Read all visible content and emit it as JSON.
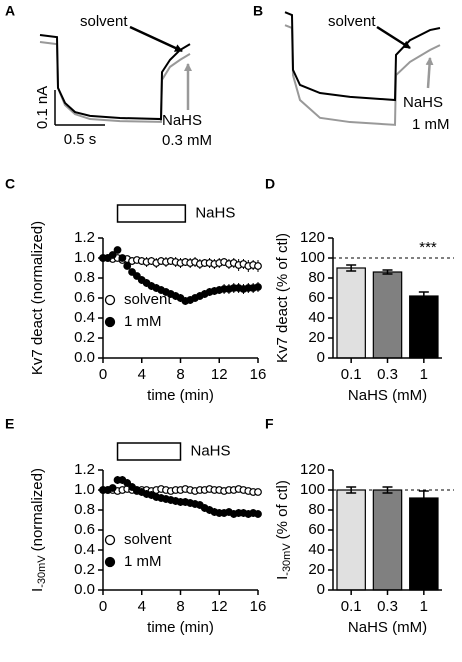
{
  "chart_data": [
    {
      "type": "trace",
      "panel": "A",
      "x": [
        0,
        0.17,
        0.18,
        0.25,
        0.35,
        0.5,
        0.8,
        1.21,
        1.22,
        1.3,
        1.4,
        1.5
      ],
      "xlim": [
        0,
        1.55
      ],
      "ylim": [
        0,
        0.357
      ],
      "series": [
        {
          "color": "#000000",
          "values": [
            0.257,
            0.251,
            0.106,
            0.063,
            0.037,
            0.026,
            0.02,
            0.017,
            0.151,
            0.186,
            0.214,
            0.231
          ]
        },
        {
          "color": "#999999",
          "values": [
            0.237,
            0.231,
            0.106,
            0.057,
            0.031,
            0.017,
            0.011,
            0.009,
            0.129,
            0.166,
            0.186,
            0.203
          ]
        }
      ],
      "annotations": [
        "solvent",
        "NaHS",
        "0.3 mM"
      ],
      "scale_bar": {
        "y": 0.1,
        "y_label": "0.1 nA",
        "x": 0.5,
        "x_label": "0.5 s"
      }
    },
    {
      "type": "trace",
      "panel": "B",
      "x": [
        0,
        0.07,
        0.08,
        0.15,
        0.35,
        0.65,
        1.1,
        1.11,
        1.25,
        1.45,
        1.55
      ],
      "xlim": [
        0,
        1.55
      ],
      "ylim": [
        0,
        0.386
      ],
      "series": [
        {
          "color": "#000000",
          "values": [
            0.351,
            0.343,
            0.186,
            0.143,
            0.12,
            0.109,
            0.1,
            0.229,
            0.271,
            0.3,
            0.306
          ]
        },
        {
          "color": "#999999",
          "values": [
            0.314,
            0.306,
            0.171,
            0.1,
            0.049,
            0.037,
            0.029,
            0.171,
            0.209,
            0.243,
            0.257
          ]
        }
      ],
      "annotations": [
        "solvent",
        "NaHS",
        "1 mM"
      ]
    },
    {
      "type": "scatter",
      "panel": "C",
      "x": [
        0,
        0.5,
        1,
        1.5,
        2,
        2.5,
        3,
        3.5,
        4,
        4.5,
        5,
        5.5,
        6,
        6.5,
        7,
        7.5,
        8,
        8.5,
        9,
        9.5,
        10,
        10.5,
        11,
        11.5,
        12,
        12.5,
        13,
        13.5,
        14,
        14.5,
        15,
        15.5,
        16
      ],
      "xlim": [
        0,
        16
      ],
      "xticks": [
        0,
        4,
        8,
        12,
        16
      ],
      "ylim": [
        0,
        1.2
      ],
      "yticks": [
        {
          "value": 0,
          "label": "0.0"
        },
        0.2,
        0.4,
        0.6,
        0.8,
        {
          "value": 1,
          "label": "1.0"
        },
        1.2
      ],
      "x_label": "time (min)",
      "y_label": "Kv7 deact (normalized)",
      "bar_label": "NaHS",
      "bar_start": 1.5,
      "bar_end": 8.5,
      "series": [
        {
          "name": "solvent",
          "marker": "open",
          "color": "#000000",
          "values": [
            1.0,
            1.0,
            0.99,
            1.0,
            0.98,
            0.99,
            0.97,
            0.98,
            0.97,
            0.96,
            0.97,
            0.95,
            0.97,
            0.96,
            0.97,
            0.96,
            0.95,
            0.96,
            0.95,
            0.96,
            0.94,
            0.95,
            0.95,
            0.94,
            0.95,
            0.96,
            0.94,
            0.95,
            0.93,
            0.94,
            0.92,
            0.93,
            0.92
          ],
          "errors": [
            0.02,
            0.02,
            0.02,
            0.03,
            0.03,
            0.03,
            0.04,
            0.03,
            0.04,
            0.05,
            0.04,
            0.05,
            0.04,
            0.05,
            0.04,
            0.05,
            0.05,
            0.04,
            0.05,
            0.05,
            0.05,
            0.04,
            0.05,
            0.05,
            0.05,
            0.04,
            0.05,
            0.05,
            0.06,
            0.05,
            0.06,
            0.05,
            0.06
          ]
        },
        {
          "name": "1 mM",
          "marker": "filled",
          "color": "#000000",
          "values": [
            1.0,
            1.0,
            1.03,
            1.08,
            1.0,
            0.92,
            0.86,
            0.82,
            0.78,
            0.75,
            0.72,
            0.7,
            0.68,
            0.66,
            0.64,
            0.62,
            0.6,
            0.57,
            0.58,
            0.6,
            0.62,
            0.64,
            0.66,
            0.67,
            0.68,
            0.69,
            0.69,
            0.7,
            0.7,
            0.69,
            0.7,
            0.7,
            0.71
          ],
          "errors": [
            0.02,
            0.02,
            0.02,
            0.03,
            0.03,
            0.03,
            0.03,
            0.03,
            0.04,
            0.04,
            0.04,
            0.04,
            0.04,
            0.04,
            0.04,
            0.04,
            0.04,
            0.04,
            0.04,
            0.04,
            0.04,
            0.04,
            0.04,
            0.04,
            0.04,
            0.05,
            0.05,
            0.05,
            0.05,
            0.05,
            0.05,
            0.05,
            0.05
          ]
        }
      ]
    },
    {
      "type": "bar",
      "panel": "D",
      "categories": [
        "0.1",
        "0.3",
        "1"
      ],
      "values": [
        90,
        86,
        62
      ],
      "errors": [
        3,
        2,
        4
      ],
      "colors": [
        "#e0e0e0",
        "#808080",
        "#000000"
      ],
      "ylim": [
        0,
        120
      ],
      "yticks": [
        0,
        20,
        40,
        60,
        80,
        100,
        120
      ],
      "ref_line": 100,
      "x_label": "NaHS (mM)",
      "y_label": "Kv7 deact (% of ctl)",
      "annotation": "***"
    },
    {
      "type": "scatter",
      "panel": "E",
      "x": [
        0,
        0.5,
        1,
        1.5,
        2,
        2.5,
        3,
        3.5,
        4,
        4.5,
        5,
        5.5,
        6,
        6.5,
        7,
        7.5,
        8,
        8.5,
        9,
        9.5,
        10,
        10.5,
        11,
        11.5,
        12,
        12.5,
        13,
        13.5,
        14,
        14.5,
        15,
        15.5,
        16
      ],
      "xlim": [
        0,
        16
      ],
      "xticks": [
        0,
        4,
        8,
        12,
        16
      ],
      "ylim": [
        0,
        1.2
      ],
      "yticks": [
        {
          "value": 0,
          "label": "0.0"
        },
        0.2,
        0.4,
        0.6,
        0.8,
        {
          "value": 1,
          "label": "1.0"
        },
        1.2
      ],
      "x_label": "time (min)",
      "y_label": "I",
      "y_label_sub": "-30mV",
      "y_label_end": "(normalized)",
      "bar_label": "NaHS",
      "bar_start": 1.5,
      "bar_end": 8,
      "series": [
        {
          "name": "solvent",
          "marker": "open",
          "color": "#000000",
          "values": [
            1.0,
            1.0,
            1.0,
            0.99,
            1.0,
            1.01,
            1.0,
            0.99,
            1.0,
            1.0,
            0.99,
            1.0,
            1.01,
            1.0,
            0.99,
            1.0,
            1.0,
            1.01,
            1.0,
            0.99,
            1.0,
            1.0,
            1.01,
            1.0,
            1.0,
            0.99,
            1.0,
            1.0,
            1.01,
            1.0,
            0.99,
            0.98,
            0.98
          ],
          "errors": [
            0.02,
            0.02,
            0.02,
            0.02,
            0.02,
            0.02,
            0.02,
            0.02,
            0.02,
            0.02,
            0.02,
            0.02,
            0.02,
            0.02,
            0.02,
            0.02,
            0.02,
            0.02,
            0.02,
            0.02,
            0.02,
            0.02,
            0.02,
            0.02,
            0.02,
            0.02,
            0.02,
            0.02,
            0.02,
            0.02,
            0.02,
            0.02,
            0.02
          ]
        },
        {
          "name": "1 mM",
          "marker": "filled",
          "color": "#000000",
          "values": [
            1.0,
            1.0,
            1.02,
            1.1,
            1.1,
            1.07,
            1.03,
            1.0,
            0.98,
            0.96,
            0.95,
            0.93,
            0.92,
            0.91,
            0.9,
            0.89,
            0.88,
            0.88,
            0.87,
            0.86,
            0.85,
            0.82,
            0.8,
            0.78,
            0.77,
            0.77,
            0.78,
            0.76,
            0.77,
            0.77,
            0.76,
            0.77,
            0.76
          ],
          "errors": [
            0.02,
            0.02,
            0.03,
            0.04,
            0.04,
            0.04,
            0.04,
            0.04,
            0.04,
            0.04,
            0.04,
            0.04,
            0.04,
            0.04,
            0.04,
            0.04,
            0.04,
            0.04,
            0.04,
            0.04,
            0.04,
            0.04,
            0.04,
            0.04,
            0.04,
            0.04,
            0.04,
            0.04,
            0.04,
            0.04,
            0.04,
            0.04,
            0.04
          ]
        }
      ]
    },
    {
      "type": "bar",
      "panel": "F",
      "categories": [
        "0.1",
        "0.3",
        "1"
      ],
      "values": [
        100,
        100,
        92
      ],
      "errors": [
        3,
        3,
        7
      ],
      "colors": [
        "#e0e0e0",
        "#808080",
        "#000000"
      ],
      "ylim": [
        0,
        120
      ],
      "yticks": [
        0,
        20,
        40,
        60,
        80,
        100,
        120
      ],
      "ref_line": 100,
      "x_label": "NaHS (mM)",
      "y_label": "I",
      "y_label_sub": "-30mV",
      "y_label_end": "(% of ctl)"
    }
  ]
}
